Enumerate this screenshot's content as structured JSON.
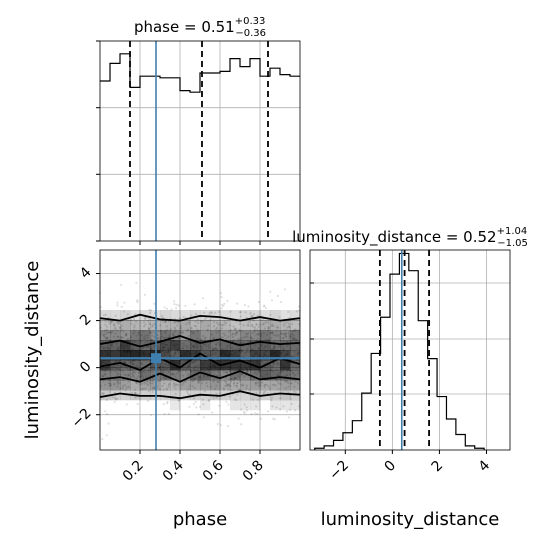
{
  "chart_data": {
    "type": "corner",
    "parameters": [
      "phase",
      "luminosity_distance"
    ],
    "truth": {
      "phase": 0.28,
      "luminosity_distance": 0.4
    },
    "panels": [
      {
        "id": "phase-hist",
        "type": "histogram",
        "parameter": "phase",
        "title_name": "phase",
        "title_value": "0.51",
        "title_plus": "+0.33",
        "title_minus": "−0.36",
        "xlim": [
          0.0,
          1.0
        ],
        "ylim": [
          0,
          1.25
        ],
        "bin_edges": [
          0.0,
          0.05,
          0.1,
          0.15,
          0.2,
          0.25,
          0.3,
          0.35,
          0.4,
          0.45,
          0.5,
          0.55,
          0.6,
          0.65,
          0.7,
          0.75,
          0.8,
          0.85,
          0.9,
          0.95,
          1.0
        ],
        "heights": [
          1.0,
          1.11,
          1.17,
          0.96,
          1.03,
          1.03,
          1.02,
          1.02,
          0.94,
          0.93,
          1.05,
          1.05,
          1.06,
          1.14,
          1.09,
          1.14,
          1.03,
          1.08,
          1.04,
          1.03
        ],
        "quantiles": [
          0.15,
          0.51,
          0.84
        ],
        "truth": 0.28,
        "grid": true
      },
      {
        "id": "ld-hist",
        "type": "histogram",
        "parameter": "luminosity_distance",
        "title_name": "luminosity_distance",
        "title_value": "0.52",
        "title_plus": "+1.04",
        "title_minus": "−1.05",
        "xlim": [
          -3.5,
          5.0
        ],
        "ylim": [
          0,
          0.58
        ],
        "bin_edges": [
          -3.3,
          -2.9,
          -2.5,
          -2.1,
          -1.7,
          -1.3,
          -0.9,
          -0.5,
          -0.1,
          0.3,
          0.7,
          1.1,
          1.5,
          1.9,
          2.3,
          2.7,
          3.1,
          3.5,
          3.9
        ],
        "heights": [
          0.005,
          0.012,
          0.028,
          0.05,
          0.085,
          0.165,
          0.28,
          0.385,
          0.51,
          0.57,
          0.52,
          0.375,
          0.265,
          0.155,
          0.09,
          0.045,
          0.012,
          0.005
        ],
        "quantiles": [
          -0.53,
          0.52,
          1.56
        ],
        "truth": 0.4,
        "xticks": [
          -2,
          0,
          2,
          4
        ],
        "xticklabels": [
          "−2",
          "0",
          "2",
          "4"
        ],
        "xlabel": "luminosity_distance",
        "grid": true
      },
      {
        "id": "2d",
        "type": "density2d",
        "x_param": "phase",
        "y_param": "luminosity_distance",
        "xlim": [
          0.0,
          1.0
        ],
        "ylim": [
          -3.5,
          5.0
        ],
        "xticks": [
          0.2,
          0.4,
          0.6,
          0.8
        ],
        "xticklabels": [
          "0.2",
          "0.4",
          "0.6",
          "0.8"
        ],
        "yticks": [
          -2,
          0,
          2,
          4
        ],
        "yticklabels": [
          "−2",
          "0",
          "2",
          "4"
        ],
        "xlabel": "phase",
        "ylabel": "luminosity_distance",
        "contour_x": [
          0.0,
          0.1,
          0.2,
          0.3,
          0.4,
          0.5,
          0.6,
          0.7,
          0.8,
          0.9,
          1.0
        ],
        "contour_lines": [
          [
            -1.25,
            -1.1,
            -1.2,
            -1.2,
            -1.3,
            -1.15,
            -1.2,
            -1.0,
            -1.2,
            -1.1,
            -1.15
          ],
          [
            -0.5,
            -0.4,
            -0.6,
            -0.25,
            -0.6,
            -0.2,
            -0.45,
            -0.15,
            -0.5,
            -0.4,
            -0.5
          ],
          [
            0.05,
            0.2,
            -0.1,
            0.4,
            0.0,
            0.6,
            0.1,
            0.3,
            0.0,
            0.4,
            0.15
          ],
          [
            1.0,
            1.15,
            0.9,
            1.1,
            1.35,
            1.05,
            1.2,
            0.95,
            1.1,
            1.0,
            1.05
          ],
          [
            2.1,
            2.0,
            2.25,
            2.05,
            2.0,
            2.2,
            2.15,
            2.0,
            2.15,
            2.0,
            2.1
          ]
        ],
        "truth_x": 0.28,
        "truth_y": 0.4,
        "grid": true
      }
    ]
  }
}
